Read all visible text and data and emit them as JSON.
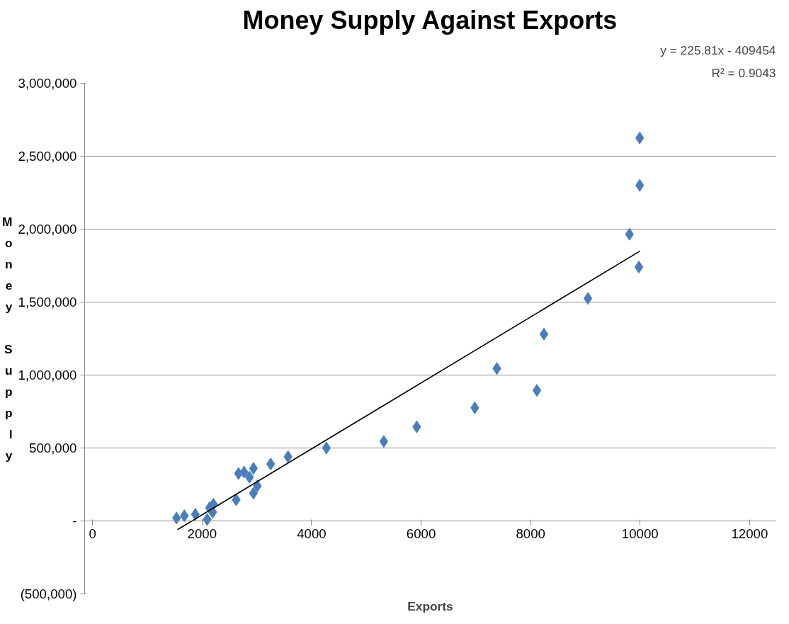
{
  "chart_data": {
    "type": "scatter",
    "title": "Money Supply Against Exports",
    "xlabel": "Exports",
    "ylabel": "Money Supply",
    "series": [
      {
        "color": "#4a7ebb",
        "marker": "diamond",
        "x": [
          1534,
          1677,
          1878,
          2093,
          2136,
          2208,
          2194,
          2624,
          2667,
          2767,
          2939,
          2867,
          3011,
          2939,
          3254,
          3570,
          4272,
          5319,
          5921,
          6982,
          7384,
          8115,
          8244,
          9047,
          9806,
          9978,
          9993,
          9993
        ],
        "values": [
          20000,
          35000,
          45000,
          10000,
          90000,
          115000,
          60000,
          145000,
          325000,
          335000,
          360000,
          300000,
          240000,
          190000,
          390000,
          440000,
          500000,
          545000,
          645000,
          775000,
          1045000,
          895000,
          1280000,
          1525000,
          1965000,
          1740000,
          2300000,
          2625000
        ]
      },
      {
        "type": "line",
        "color": "#000000",
        "line_style": "solid",
        "x": [
          1550,
          10000
        ],
        "values": [
          -60000,
          1850000
        ]
      }
    ],
    "annotations": [
      "y = 225.81x - 409454",
      "R² = 0.9043"
    ],
    "xlim": [
      0,
      12000
    ],
    "xticks": [
      0,
      2000,
      4000,
      6000,
      8000,
      10000,
      12000
    ],
    "ylim": [
      -500000,
      3000000
    ],
    "yticks": [
      {
        "value": -500000,
        "label": "(500,000)"
      },
      {
        "value": 0,
        "label": "-"
      },
      {
        "value": 500000,
        "label": "500,000"
      },
      {
        "value": 1000000,
        "label": "1,000,000"
      },
      {
        "value": 1500000,
        "label": "1,500,000"
      },
      {
        "value": 2000000,
        "label": "2,000,000"
      },
      {
        "value": 2500000,
        "label": "2,500,000"
      },
      {
        "value": 3000000,
        "label": "3,000,000"
      }
    ],
    "grid": "y"
  }
}
